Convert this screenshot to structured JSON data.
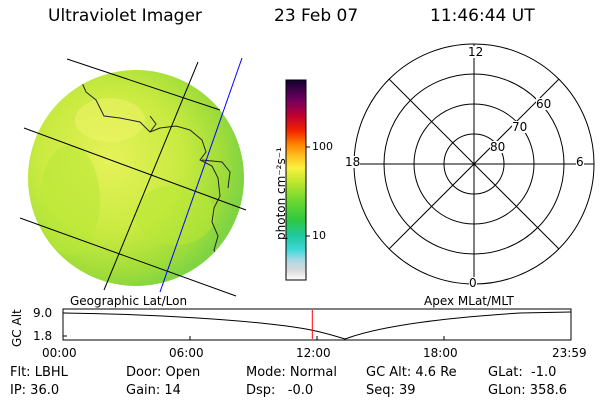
{
  "header": {
    "title": "Ultraviolet Imager",
    "date": "23 Feb 07",
    "time": "11:46:44 UT"
  },
  "colorbar": {
    "unit_label": "photon cm⁻²s⁻¹",
    "tick_100": "100",
    "tick_10": "10"
  },
  "polar_plot": {
    "mlt_top": "12",
    "mlt_left": "18",
    "mlt_right": "6",
    "mlt_bottom": "0",
    "lat_60": "60",
    "lat_70": "70",
    "lat_80": "80"
  },
  "labels": {
    "geo": "Geographic Lat/Lon",
    "apex": "Apex MLat/MLT"
  },
  "altitude_plot": {
    "ylabel": "GC Alt",
    "y_top": "9.0",
    "y_bottom": "1.8",
    "x_ticks": [
      "00:00",
      "06:00",
      "12:00",
      "18:00",
      "23:59"
    ],
    "current_hour": 11.78,
    "line_color": "#000000",
    "marker_color": "#ff0000"
  },
  "info": {
    "flt": "Flt: LBHL",
    "ip": "IP: 36.0",
    "door": "Door: Open",
    "gain": "Gain: 14",
    "mode": "Mode: Normal",
    "dsp": "Dsp:   -0.0",
    "gcalt": "GC Alt: 4.6 Re",
    "seq": "Seq: 39",
    "glat": "GLat:  -1.0",
    "glon": "GLon: 358.6"
  }
}
